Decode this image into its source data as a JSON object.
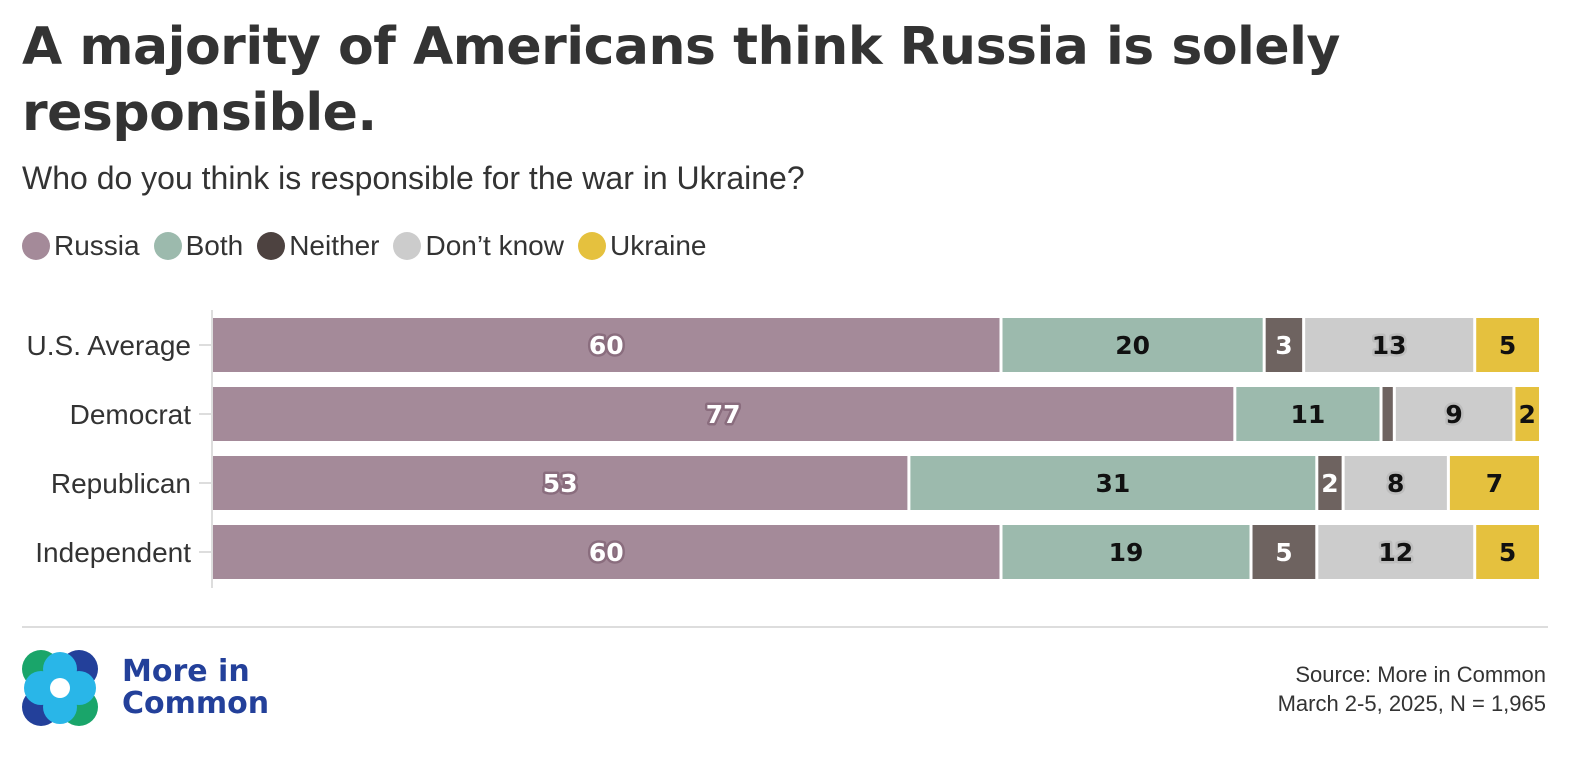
{
  "title": "A majority of Americans think Russia is solely responsible.",
  "subtitle": "Who do you think is responsible for the war in Ukraine?",
  "source": {
    "line1": "Source: More in Common",
    "line2": "March 2-5, 2025, N = 1,965"
  },
  "logo": {
    "line1": "More in",
    "line2": "Common",
    "icon": "four-petal-logo-icon"
  },
  "colors": {
    "Russia": "#a48a99",
    "Both": "#9cbaad",
    "Neither": "#6e6360",
    "Don't know": "#cccccc",
    "Ukraine": "#e5c13e",
    "legend_Neither": "#4d4240",
    "brand_blue": "#23409a"
  },
  "chart_data": {
    "type": "bar",
    "orientation": "horizontal-stacked",
    "title": "A majority of Americans think Russia is solely responsible.",
    "subtitle": "Who do you think is responsible for the war in Ukraine?",
    "categories": [
      "U.S. Average",
      "Democrat",
      "Republican",
      "Independent"
    ],
    "series": [
      {
        "name": "Russia",
        "values": [
          60,
          77,
          53,
          60
        ]
      },
      {
        "name": "Both",
        "values": [
          20,
          11,
          31,
          19
        ]
      },
      {
        "name": "Neither",
        "values": [
          3,
          1,
          2,
          5
        ]
      },
      {
        "name": "Don’t know",
        "values": [
          13,
          9,
          8,
          12
        ]
      },
      {
        "name": "Ukraine",
        "values": [
          5,
          2,
          7,
          5
        ]
      }
    ],
    "data_labels_shown": [
      [
        "60",
        "20",
        "3",
        "13",
        "5"
      ],
      [
        "77",
        "11",
        "",
        "9",
        "2"
      ],
      [
        "53",
        "31",
        "2",
        "8",
        "7"
      ],
      [
        "60",
        "19",
        "5",
        "12",
        "5"
      ]
    ],
    "xlim": [
      0,
      100
    ],
    "legend_position": "top-left",
    "grid": false
  }
}
